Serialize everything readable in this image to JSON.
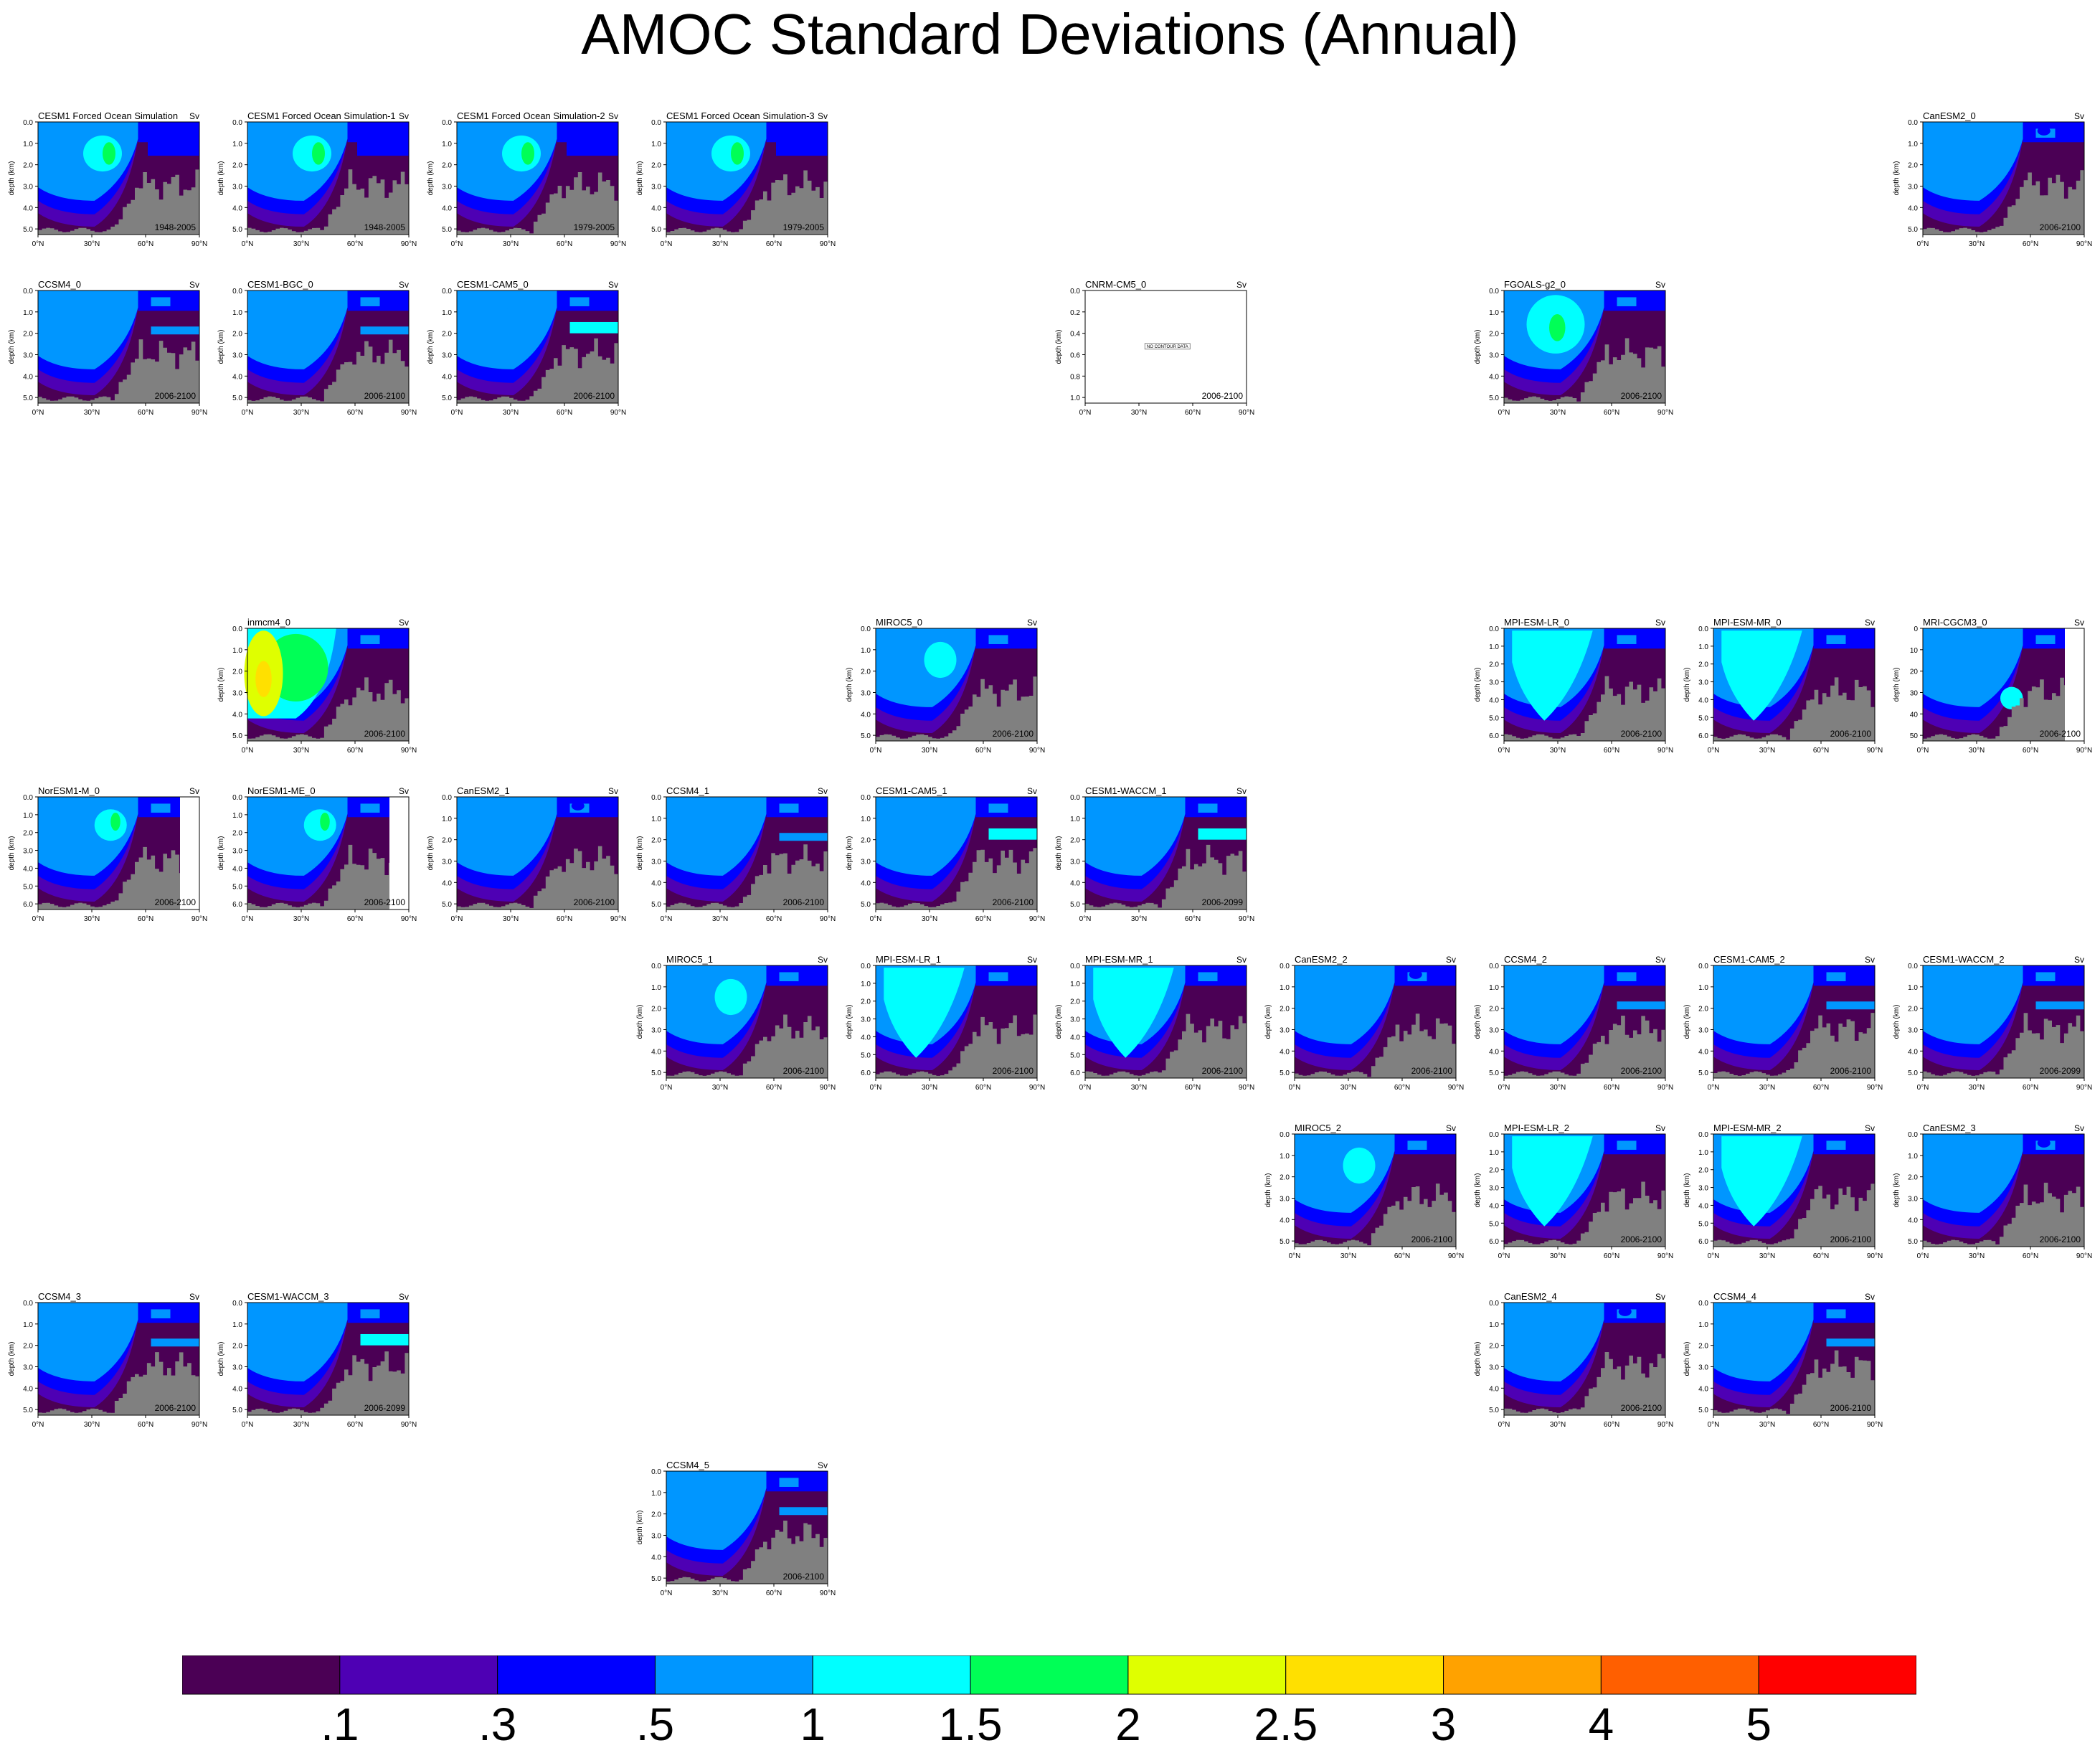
{
  "title": "AMOC Standard Deviations (Annual)",
  "units": "Sv",
  "x_ticks": [
    "0°N",
    "30°N",
    "60°N",
    "90°N"
  ],
  "y_axis_label": "depth (km)",
  "y_ticks_std": [
    "0.0",
    "1.0",
    "2.0",
    "3.0",
    "4.0",
    "5.0"
  ],
  "y_ticks_deep": [
    "0.0",
    "1.0",
    "2.0",
    "3.0",
    "4.0",
    "5.0",
    "6.0"
  ],
  "y_ticks_norway": [
    "0.0",
    "1.0",
    "2.0",
    "3.0",
    "4.0",
    "5.0",
    "6.0"
  ],
  "y_ticks_cnrm": [
    "0.0",
    "0.2",
    "0.4",
    "0.6",
    "0.8",
    "1.0"
  ],
  "y_ticks_mri": [
    "0",
    "10",
    "20",
    "30",
    "40",
    "50"
  ],
  "no_data_text": "NO CONTOUR DATA",
  "colors": {
    "grey_land": "#808080",
    "levels": [
      "#4b0055",
      "#4e00b4",
      "#0000ff",
      "#0096ff",
      "#00ffff",
      "#00ff56",
      "#dfff00",
      "#ffe000",
      "#ffa200",
      "#ff5f00",
      "#ff0000"
    ]
  },
  "chart_data": {
    "type": "contour",
    "colorbar": {
      "labels": [
        ".1",
        ".3",
        ".5",
        "1",
        "1.5",
        "2",
        "2.5",
        "3",
        "4",
        "5"
      ],
      "colors": [
        "#4b0055",
        "#4e00b4",
        "#0000ff",
        "#0096ff",
        "#00ffff",
        "#00ff56",
        "#dfff00",
        "#ffe000",
        "#ffa200",
        "#ff5f00",
        "#ff0000"
      ]
    },
    "panels": [
      {
        "name": "CESM1 Forced Ocean Simulation",
        "years": "1948-2005",
        "col": 0,
        "row": 0,
        "style": "forced"
      },
      {
        "name": "CESM1 Forced Ocean Simulation-1",
        "years": "1948-2005",
        "col": 1,
        "row": 0,
        "style": "forced"
      },
      {
        "name": "CESM1 Forced Ocean Simulation-2",
        "years": "1979-2005",
        "col": 2,
        "row": 0,
        "style": "forced"
      },
      {
        "name": "CESM1 Forced Ocean Simulation-3",
        "years": "1979-2005",
        "col": 3,
        "row": 0,
        "style": "forced"
      },
      {
        "name": "CanESM2_0",
        "years": "2006-2100",
        "col": 9,
        "row": 0,
        "style": "canesm"
      },
      {
        "name": "CCSM4_0",
        "years": "2006-2100",
        "col": 0,
        "row": 1,
        "style": "ccsm"
      },
      {
        "name": "CESM1-BGC_0",
        "years": "2006-2100",
        "col": 1,
        "row": 1,
        "style": "ccsm"
      },
      {
        "name": "CESM1-CAM5_0",
        "years": "2006-2100",
        "col": 2,
        "row": 1,
        "style": "cam5"
      },
      {
        "name": "CNRM-CM5_0",
        "years": "2006-2100",
        "col": 5,
        "row": 1,
        "style": "cnrm"
      },
      {
        "name": "FGOALS-g2_0",
        "years": "2006-2100",
        "col": 7,
        "row": 1,
        "style": "fgoals"
      },
      {
        "name": "inmcm4_0",
        "years": "2006-2100",
        "col": 1,
        "row": 3,
        "style": "inmcm"
      },
      {
        "name": "MIROC5_0",
        "years": "2006-2100",
        "col": 4,
        "row": 3,
        "style": "miroc"
      },
      {
        "name": "MPI-ESM-LR_0",
        "years": "2006-2100",
        "col": 7,
        "row": 3,
        "style": "mpi"
      },
      {
        "name": "MPI-ESM-MR_0",
        "years": "2006-2100",
        "col": 8,
        "row": 3,
        "style": "mpi"
      },
      {
        "name": "MRI-CGCM3_0",
        "years": "2006-2100",
        "col": 9,
        "row": 3,
        "style": "mri"
      },
      {
        "name": "NorESM1-M_0",
        "years": "2006-2100",
        "col": 0,
        "row": 4,
        "style": "noresm"
      },
      {
        "name": "NorESM1-ME_0",
        "years": "2006-2100",
        "col": 1,
        "row": 4,
        "style": "noresm"
      },
      {
        "name": "CanESM2_1",
        "years": "2006-2100",
        "col": 2,
        "row": 4,
        "style": "canesm"
      },
      {
        "name": "CCSM4_1",
        "years": "2006-2100",
        "col": 3,
        "row": 4,
        "style": "ccsm"
      },
      {
        "name": "CESM1-CAM5_1",
        "years": "2006-2100",
        "col": 4,
        "row": 4,
        "style": "cam5"
      },
      {
        "name": "CESM1-WACCM_1",
        "years": "2006-2099",
        "col": 5,
        "row": 4,
        "style": "cam5"
      },
      {
        "name": "MIROC5_1",
        "years": "2006-2100",
        "col": 3,
        "row": 5,
        "style": "miroc"
      },
      {
        "name": "MPI-ESM-LR_1",
        "years": "2006-2100",
        "col": 4,
        "row": 5,
        "style": "mpi"
      },
      {
        "name": "MPI-ESM-MR_1",
        "years": "2006-2100",
        "col": 5,
        "row": 5,
        "style": "mpi"
      },
      {
        "name": "CanESM2_2",
        "years": "2006-2100",
        "col": 6,
        "row": 5,
        "style": "canesm"
      },
      {
        "name": "CCSM4_2",
        "years": "2006-2100",
        "col": 7,
        "row": 5,
        "style": "ccsm"
      },
      {
        "name": "CESM1-CAM5_2",
        "years": "2006-2100",
        "col": 8,
        "row": 5,
        "style": "ccsm"
      },
      {
        "name": "CESM1-WACCM_2",
        "years": "2006-2099",
        "col": 9,
        "row": 5,
        "style": "ccsm"
      },
      {
        "name": "MIROC5_2",
        "years": "2006-2100",
        "col": 6,
        "row": 6,
        "style": "miroc"
      },
      {
        "name": "MPI-ESM-LR_2",
        "years": "2006-2100",
        "col": 7,
        "row": 6,
        "style": "mpi"
      },
      {
        "name": "MPI-ESM-MR_2",
        "years": "2006-2100",
        "col": 8,
        "row": 6,
        "style": "mpi"
      },
      {
        "name": "CanESM2_3",
        "years": "2006-2100",
        "col": 9,
        "row": 6,
        "style": "canesm"
      },
      {
        "name": "CCSM4_3",
        "years": "2006-2100",
        "col": 0,
        "row": 7,
        "style": "ccsm"
      },
      {
        "name": "CESM1-WACCM_3",
        "years": "2006-2099",
        "col": 1,
        "row": 7,
        "style": "cam5"
      },
      {
        "name": "CanESM2_4",
        "years": "2006-2100",
        "col": 7,
        "row": 7,
        "style": "canesm"
      },
      {
        "name": "CCSM4_4",
        "years": "2006-2100",
        "col": 8,
        "row": 7,
        "style": "ccsm"
      },
      {
        "name": "CCSM4_5",
        "years": "2006-2100",
        "col": 3,
        "row": 8,
        "style": "ccsm"
      }
    ]
  }
}
